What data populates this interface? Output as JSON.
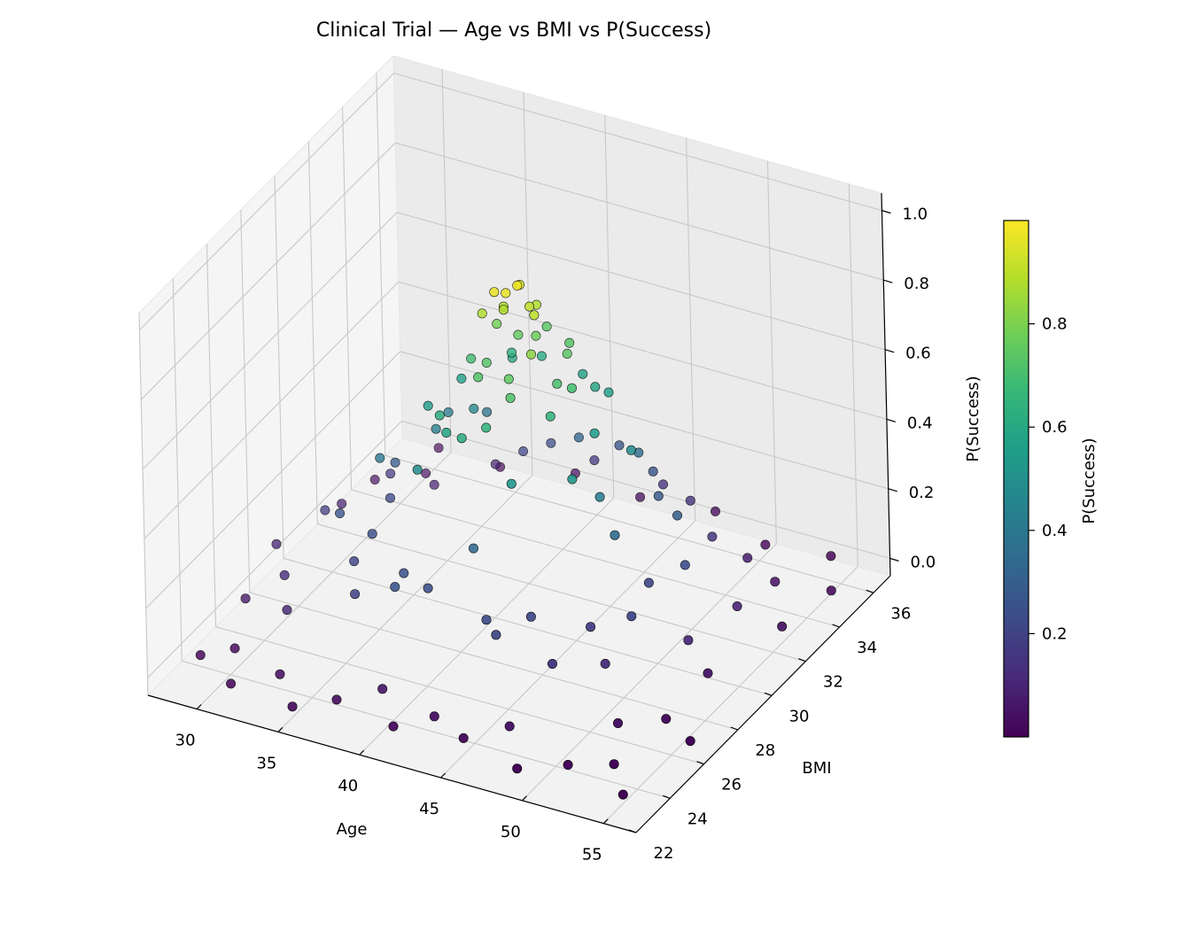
{
  "chart_data": {
    "type": "scatter",
    "projection": "3d",
    "title": "Clinical Trial — Age vs BMI vs P(Success)",
    "xlabel": "Age",
    "ylabel": "BMI",
    "zlabel": "P(Success)",
    "xlim": [
      27,
      57
    ],
    "ylim": [
      22,
      37
    ],
    "zlim": [
      -0.05,
      1.05
    ],
    "xticks": [
      30,
      35,
      40,
      45,
      50,
      55
    ],
    "yticks": [
      22,
      24,
      26,
      28,
      30,
      32,
      34,
      36
    ],
    "zticks": [
      "0.0",
      "0.2",
      "0.4",
      "0.6",
      "0.8",
      "1.0"
    ],
    "grid": true,
    "colormap": "viridis",
    "marker_edge_color": "#000000",
    "colorbar": {
      "label": "P(Success)",
      "ticks": [
        "0.2",
        "0.4",
        "0.6",
        "0.8"
      ],
      "range": [
        0.0,
        1.0
      ],
      "stops": [
        "#440154",
        "#482878",
        "#3e4989",
        "#31688e",
        "#26828e",
        "#1f9e89",
        "#35b779",
        "#6ece58",
        "#b5de2b",
        "#fde725"
      ]
    },
    "peak": {
      "x": 42,
      "y": 29
    },
    "points": [
      [
        28.7,
        23.5,
        0.014
      ],
      [
        30.3,
        24.0,
        0.03
      ],
      [
        31.5,
        22.6,
        0.013
      ],
      [
        33.8,
        23.3,
        0.036
      ],
      [
        35.6,
        22.3,
        0.016
      ],
      [
        37.7,
        22.9,
        0.034
      ],
      [
        39.8,
        23.6,
        0.058
      ],
      [
        41.6,
        22.5,
        0.028
      ],
      [
        43.4,
        23.2,
        0.046
      ],
      [
        45.6,
        22.8,
        0.032
      ],
      [
        47.5,
        23.7,
        0.047
      ],
      [
        49.3,
        22.4,
        0.013
      ],
      [
        51.7,
        23.1,
        0.021
      ],
      [
        53.8,
        23.8,
        0.016
      ],
      [
        55.5,
        22.7,
        0.005
      ],
      [
        29.2,
        25.7,
        0.075
      ],
      [
        30.9,
        26.4,
        0.13
      ],
      [
        32.4,
        25.1,
        0.114
      ],
      [
        34.9,
        26.7,
        0.208
      ],
      [
        36.3,
        25.4,
        0.196
      ],
      [
        38.6,
        26.1,
        0.252
      ],
      [
        40.4,
        25.8,
        0.247
      ],
      [
        42.2,
        26.8,
        0.336
      ],
      [
        44.5,
        25.3,
        0.235
      ],
      [
        46.3,
        26.2,
        0.223
      ],
      [
        48.2,
        25.6,
        0.142
      ],
      [
        50.4,
        26.6,
        0.122
      ],
      [
        52.6,
        25.2,
        0.049
      ],
      [
        54.4,
        26.3,
        0.031
      ],
      [
        56.3,
        25.9,
        0.012
      ],
      [
        28.4,
        28.3,
        0.093
      ],
      [
        30.6,
        29.1,
        0.18
      ],
      [
        32.8,
        27.9,
        0.259
      ],
      [
        34.5,
        28.7,
        0.401
      ],
      [
        36.8,
        29.4,
        0.547
      ],
      [
        38.9,
        28.1,
        0.611
      ],
      [
        40.7,
        29.2,
        0.732
      ],
      [
        42.8,
        28.5,
        0.747
      ],
      [
        44.6,
        29.6,
        0.703
      ],
      [
        46.9,
        28.2,
        0.528
      ],
      [
        48.6,
        29.0,
        0.35
      ],
      [
        50.8,
        27.8,
        0.205
      ],
      [
        53.1,
        28.9,
        0.112
      ],
      [
        54.8,
        28.4,
        0.064
      ],
      [
        29.6,
        31.0,
        0.092
      ],
      [
        31.8,
        31.8,
        0.168
      ],
      [
        33.4,
        30.6,
        0.28
      ],
      [
        35.9,
        31.4,
        0.418
      ],
      [
        37.3,
        30.9,
        0.558
      ],
      [
        39.4,
        31.9,
        0.596
      ],
      [
        41.3,
        30.5,
        0.756
      ],
      [
        43.7,
        31.2,
        0.73
      ],
      [
        45.2,
        32.0,
        0.568
      ],
      [
        47.8,
        30.8,
        0.495
      ],
      [
        49.7,
        31.6,
        0.293
      ],
      [
        51.4,
        30.4,
        0.232
      ],
      [
        53.6,
        31.3,
        0.098
      ],
      [
        55.7,
        31.9,
        0.038
      ],
      [
        28.9,
        33.6,
        0.024
      ],
      [
        31.2,
        34.4,
        0.033
      ],
      [
        33.1,
        33.1,
        0.089
      ],
      [
        35.2,
        34.7,
        0.097
      ],
      [
        37.9,
        33.8,
        0.214
      ],
      [
        39.2,
        34.2,
        0.235
      ],
      [
        41.9,
        33.3,
        0.331
      ],
      [
        43.1,
        34.5,
        0.265
      ],
      [
        45.8,
        33.9,
        0.255
      ],
      [
        47.1,
        34.8,
        0.144
      ],
      [
        49.9,
        33.4,
        0.146
      ],
      [
        51.3,
        34.1,
        0.069
      ],
      [
        53.4,
        33.7,
        0.048
      ],
      [
        55.9,
        34.6,
        0.011
      ],
      [
        30.1,
        36.2,
        0.003
      ],
      [
        34.2,
        35.9,
        0.017
      ],
      [
        38.3,
        36.4,
        0.028
      ],
      [
        42.6,
        36.1,
        0.031
      ],
      [
        46.7,
        36.6,
        0.019
      ],
      [
        50.6,
        35.8,
        0.014
      ],
      [
        54.1,
        36.3,
        0.003
      ],
      [
        38.2,
        27.4,
        0.48
      ],
      [
        39.5,
        27.9,
        0.579
      ],
      [
        40.8,
        28.6,
        0.721
      ],
      [
        41.2,
        27.2,
        0.62
      ],
      [
        42.4,
        27.5,
        0.651
      ],
      [
        43.3,
        28.1,
        0.719
      ],
      [
        44.1,
        27.3,
        0.522
      ],
      [
        45.0,
        28.8,
        0.654
      ],
      [
        39.1,
        29.8,
        0.693
      ],
      [
        40.2,
        30.3,
        0.783
      ],
      [
        41.5,
        29.5,
        0.88
      ],
      [
        42.1,
        29.9,
        0.94
      ],
      [
        42.9,
        30.1,
        0.883
      ],
      [
        43.6,
        29.3,
        0.902
      ],
      [
        44.3,
        30.5,
        0.741
      ],
      [
        45.4,
        29.7,
        0.696
      ],
      [
        46.2,
        30.2,
        0.552
      ],
      [
        37.8,
        31.1,
        0.468
      ],
      [
        39.9,
        31.4,
        0.642
      ],
      [
        40.9,
        32.2,
        0.606
      ],
      [
        42.0,
        31.5,
        0.74
      ],
      [
        43.2,
        32.4,
        0.575
      ],
      [
        44.7,
        31.7,
        0.592
      ],
      [
        46.0,
        32.9,
        0.361
      ],
      [
        41.7,
        28.8,
        0.968
      ],
      [
        42.3,
        28.9,
        0.968
      ],
      [
        42.7,
        29.2,
        0.98
      ],
      [
        41.4,
        29.6,
        0.883
      ],
      [
        43.0,
        29.6,
        0.904
      ],
      [
        42.5,
        30.4,
        0.774
      ],
      [
        40.6,
        29.1,
        0.877
      ],
      [
        44.0,
        28.7,
        0.824
      ],
      [
        36.4,
        30.2,
        0.436
      ],
      [
        47.3,
        29.4,
        0.423
      ],
      [
        35.1,
        27.6,
        0.245
      ],
      [
        48.9,
        27.2,
        0.179
      ],
      [
        37.0,
        32.6,
        0.374
      ],
      [
        47.6,
        32.5,
        0.277
      ],
      [
        33.9,
        29.8,
        0.224
      ],
      [
        50.1,
        29.5,
        0.208
      ],
      [
        39.0,
        25.2,
        0.262
      ],
      [
        45.4,
        25.0,
        0.218
      ],
      [
        41.0,
        35.0,
        0.17
      ],
      [
        44.9,
        35.3,
        0.137
      ]
    ]
  }
}
